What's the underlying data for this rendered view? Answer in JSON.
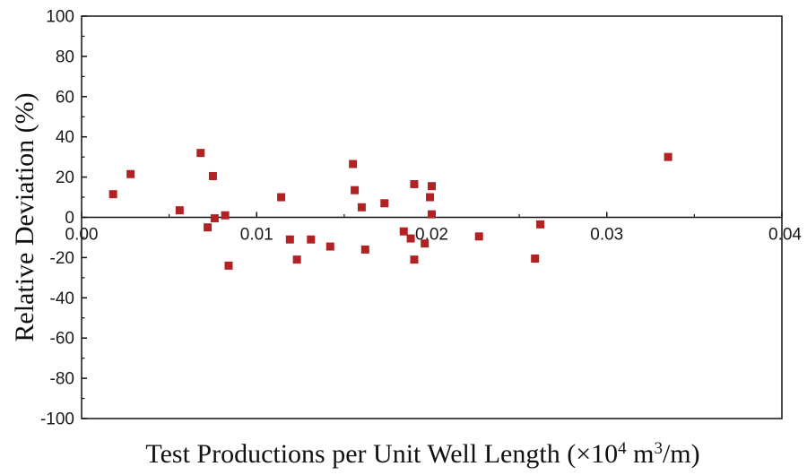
{
  "chart_data": {
    "type": "scatter",
    "xlabel_main": "Test Productions per Unit Well Length (×10",
    "xlabel_sup1": "4",
    "xlabel_mid": " m",
    "xlabel_sup2": "3",
    "xlabel_end": "/m)",
    "ylabel": "Relative Deviation (%)",
    "xlim": [
      0,
      0.04
    ],
    "ylim": [
      -100,
      100
    ],
    "x_ticks": [
      "0.00",
      "0.01",
      "0.02",
      "0.03",
      "0.04"
    ],
    "y_ticks": [
      "100",
      "80",
      "60",
      "40",
      "20",
      "0",
      "-20",
      "-40",
      "-60",
      "-80",
      "-100"
    ],
    "grid": false,
    "marker_color": "#b22222",
    "points": [
      {
        "x": 0.0018,
        "y": 11.5
      },
      {
        "x": 0.0028,
        "y": 21.5
      },
      {
        "x": 0.0056,
        "y": 3.5
      },
      {
        "x": 0.0068,
        "y": 32
      },
      {
        "x": 0.0072,
        "y": -5
      },
      {
        "x": 0.0075,
        "y": 20.5
      },
      {
        "x": 0.0076,
        "y": -0.5
      },
      {
        "x": 0.0082,
        "y": 1
      },
      {
        "x": 0.0084,
        "y": -24
      },
      {
        "x": 0.0114,
        "y": 10
      },
      {
        "x": 0.0119,
        "y": -11
      },
      {
        "x": 0.0123,
        "y": -21
      },
      {
        "x": 0.0131,
        "y": -11
      },
      {
        "x": 0.0142,
        "y": -14.5
      },
      {
        "x": 0.0155,
        "y": 26.5
      },
      {
        "x": 0.0156,
        "y": 13.5
      },
      {
        "x": 0.016,
        "y": 5
      },
      {
        "x": 0.0162,
        "y": -16
      },
      {
        "x": 0.0173,
        "y": 7
      },
      {
        "x": 0.0184,
        "y": -7
      },
      {
        "x": 0.0188,
        "y": -10.5
      },
      {
        "x": 0.019,
        "y": 16.5
      },
      {
        "x": 0.019,
        "y": -21
      },
      {
        "x": 0.0196,
        "y": -13
      },
      {
        "x": 0.0199,
        "y": 10
      },
      {
        "x": 0.02,
        "y": 15.5
      },
      {
        "x": 0.02,
        "y": 1.5
      },
      {
        "x": 0.0227,
        "y": -9.5
      },
      {
        "x": 0.0259,
        "y": -20.5
      },
      {
        "x": 0.0262,
        "y": -3.5
      },
      {
        "x": 0.0335,
        "y": 30
      }
    ]
  }
}
